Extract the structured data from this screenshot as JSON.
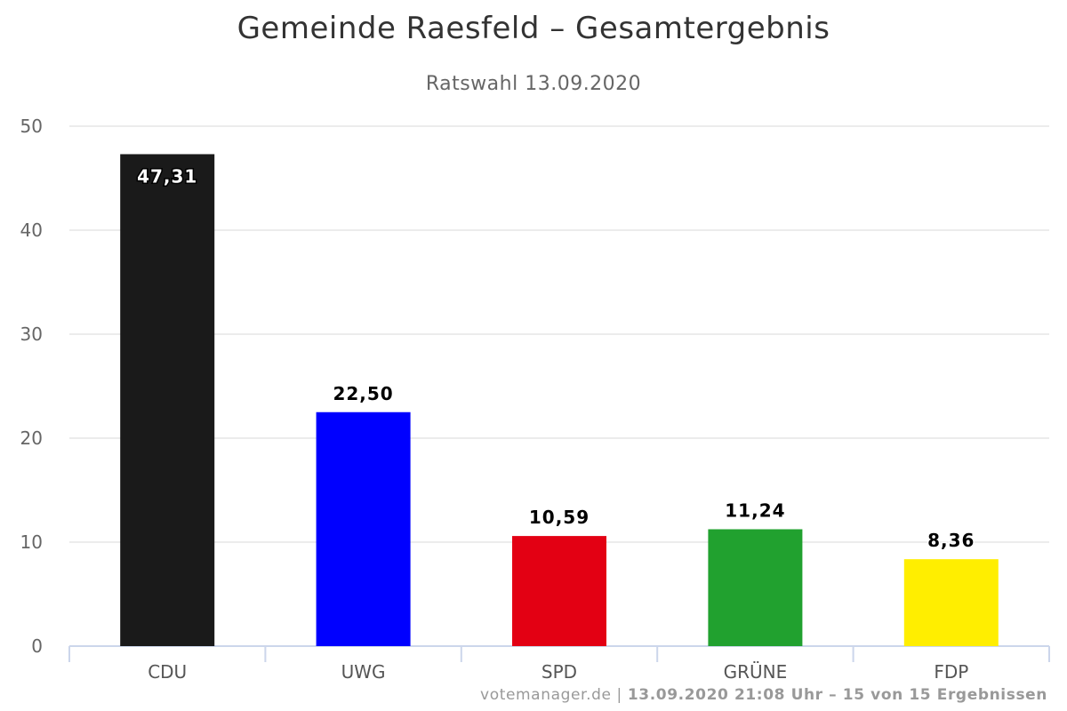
{
  "chart_data": {
    "type": "bar",
    "title": "Gemeinde Raesfeld – Gesamtergebnis",
    "subtitle": "Ratswahl 13.09.2020",
    "categories": [
      "CDU",
      "UWG",
      "SPD",
      "GRÜNE",
      "FDP"
    ],
    "values": [
      47.31,
      22.5,
      10.59,
      11.24,
      8.36
    ],
    "value_labels": [
      "47,31",
      "22,50",
      "10,59",
      "11,24",
      "8,36"
    ],
    "colors": [
      "#1a1a1a",
      "#0000ff",
      "#e30013",
      "#21a12f",
      "#ffee00"
    ],
    "ylim": [
      0,
      50
    ],
    "yticks": [
      0,
      10,
      20,
      30,
      40,
      50
    ],
    "grid": true,
    "legend": "none"
  },
  "credits": {
    "source": "votemanager.de",
    "separator": " | ",
    "status": "13.09.2020 21:08 Uhr – 15 von 15 Ergebnissen"
  }
}
